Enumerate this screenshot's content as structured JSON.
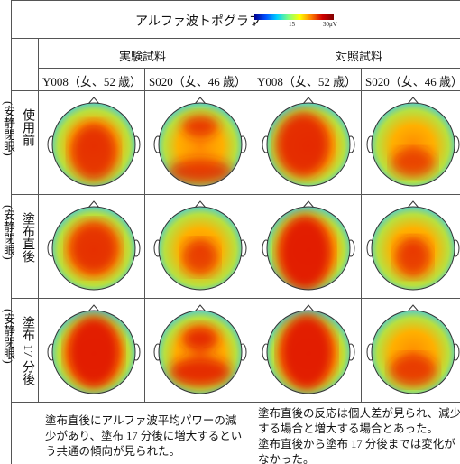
{
  "title": "アルファ波トポグラフ",
  "colorbar": {
    "labels": [
      "0",
      "15",
      "30μV"
    ]
  },
  "groups": [
    "実験試料",
    "対照試料"
  ],
  "subjects": [
    "Y008（女、52 歳）",
    "S020（女、46 歳）",
    "Y008（女、52 歳）",
    "S020（女、46 歳）"
  ],
  "rows": [
    {
      "condition": "(安静閉眼)",
      "label": "使用前"
    },
    {
      "condition": "(安静閉眼)",
      "label": "塗布直後"
    },
    {
      "condition": "(安静閉眼)",
      "label": "塗布 17 分後"
    }
  ],
  "notes": [
    [
      "塗布直後にアルファ波平均パワーの減少があり、塗布 17 分後に増大するという共通の傾向が見られた。"
    ],
    [
      "塗布直後の反応は個人差が見られ、減少する場合と増大する場合とあった。",
      "塗布直後から塗布 17 分後までは変化がなかった。"
    ]
  ]
}
